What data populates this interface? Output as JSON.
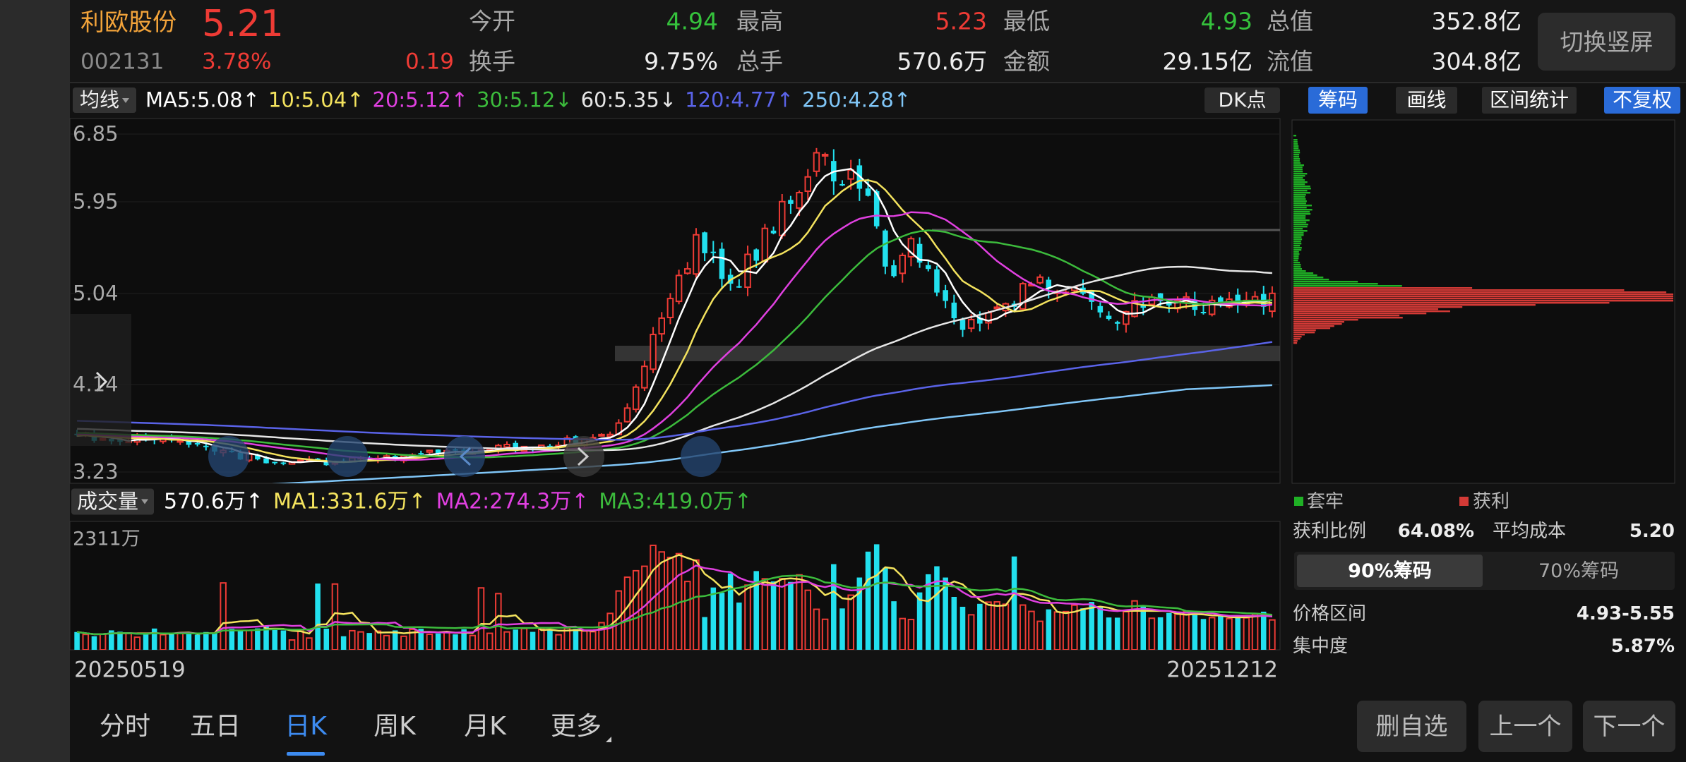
{
  "header": {
    "name": "利欧股份",
    "price": "5.21",
    "code": "002131",
    "change_percent": "3.78%",
    "change": "0.19",
    "orientation_button": "切换竖屏",
    "stats": [
      [
        {
          "label": "今开",
          "value": "4.94"
        },
        {
          "label": "最高",
          "value": "5.23"
        },
        {
          "label": "最低",
          "value": "4.93"
        },
        {
          "label": "总值",
          "value": "352.8亿"
        }
      ],
      [
        {
          "label": "换手",
          "value": "9.75%"
        },
        {
          "label": "总手",
          "value": "570.6万"
        },
        {
          "label": "金额",
          "value": "29.15亿"
        },
        {
          "label": "流值",
          "value": "304.8亿"
        }
      ]
    ]
  },
  "indicator_bar": {
    "selector": "均线",
    "moving_averages": [
      "MA5:5.08↑",
      "10:5.04↑",
      "20:5.12↑",
      "30:5.12↓",
      "60:5.35↓",
      "120:4.77↑",
      "250:4.28↑"
    ],
    "dk_button": "DK点",
    "tools": [
      "筹码",
      "画线",
      "区间统计",
      "不复权"
    ]
  },
  "price_axis": [
    "6.85",
    "5.95",
    "5.04",
    "4.14",
    "3.23"
  ],
  "volume_bar": {
    "selector": "成交量",
    "items": [
      "570.6万↑",
      "MA1:331.6万↑",
      "MA2:274.3万↑",
      "MA3:419.0万↑"
    ],
    "max_label": "2311万"
  },
  "dates": {
    "start": "20250519",
    "end": "20251212"
  },
  "chips": {
    "legend": [
      "套牢",
      "获利"
    ],
    "profit_ratio": {
      "label": "获利比例",
      "value": "64.08%"
    },
    "average_cost": {
      "label": "平均成本",
      "value": "5.20"
    },
    "tabs": [
      "90%筹码",
      "70%筹码"
    ],
    "price_range": {
      "label": "价格区间",
      "value": "4.93-5.55"
    },
    "concentration": {
      "label": "集中度",
      "value": "5.87%"
    }
  },
  "period_tabs": [
    "分时",
    "五日",
    "日K",
    "周K",
    "月K",
    "更多"
  ],
  "buttons": [
    "删自选",
    "上一个",
    "下一个"
  ]
}
